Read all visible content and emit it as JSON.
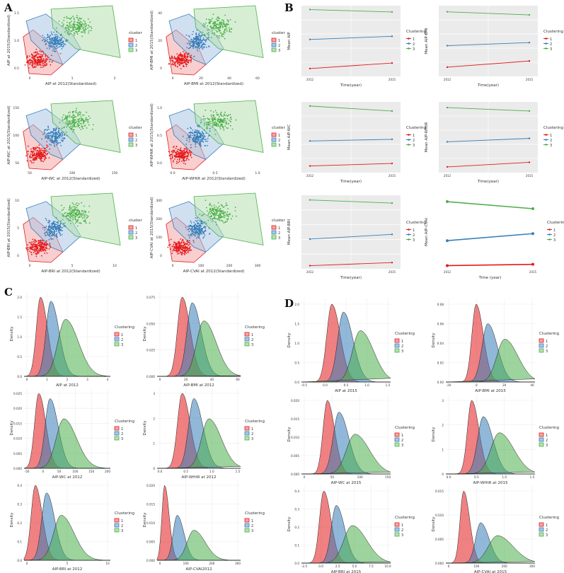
{
  "panels": {
    "A": "A",
    "B": "B",
    "C": "C",
    "D": "D"
  },
  "colors": {
    "c1": "#e41a1c",
    "c2": "#377eb8",
    "c3": "#4daf4a",
    "f1": "#f4a6a6",
    "f2": "#a9c6e6",
    "f3": "#b7e0b2",
    "grid": "#ebebeb"
  },
  "chart_data": [
    {
      "group": "A",
      "type": "scatter",
      "xlabel": "AIP at 2012(Standardized)",
      "ylabel": "AIP at 2015(Standardized)",
      "legend_title": "cluster",
      "legend": [
        "1",
        "2",
        "3"
      ],
      "xticks": [
        "0",
        "1",
        "2"
      ],
      "yticks": [
        "1.5",
        "1.0",
        "0.5"
      ]
    },
    {
      "group": "A",
      "type": "scatter",
      "xlabel": "AIP-BMI at 2012(Standardized)",
      "ylabel": "AIP-BMI at 2015(Standardized)",
      "legend_title": "cluster",
      "legend": [
        "1",
        "2",
        "3"
      ],
      "xticks": [
        "0",
        "20",
        "40",
        "60"
      ],
      "yticks": [
        "40",
        "20",
        "0"
      ]
    },
    {
      "group": "A",
      "type": "scatter",
      "xlabel": "AIP-WC at 2012(Standardized)",
      "ylabel": "AIP-WC at 2015(Standardized)",
      "legend_title": "cluster",
      "legend": [
        "1",
        "2",
        "3"
      ],
      "xticks": [
        "50",
        "100",
        "150"
      ],
      "yticks": [
        "150",
        "100",
        "50"
      ]
    },
    {
      "group": "A",
      "type": "scatter",
      "xlabel": "AIP-WHtR at 2012(Standardized)",
      "ylabel": "AIP-WHtR at 2015(Standardized)",
      "legend_title": "cluster",
      "legend": [
        "1",
        "2",
        "3"
      ],
      "xticks": [
        "0.0",
        "0.5",
        "1.0"
      ],
      "yticks": [
        "1.0",
        "0.5",
        "0.0"
      ]
    },
    {
      "group": "A",
      "type": "scatter",
      "xlabel": "AIP-BRI at 2012(Standardized)",
      "ylabel": "AIP-BRI at 2015(Standardized)",
      "legend_title": "cluster",
      "legend": [
        "1",
        "2",
        "3"
      ],
      "xticks": [
        "0",
        "5",
        "10"
      ],
      "yticks": [
        "10",
        "5",
        "0"
      ]
    },
    {
      "group": "A",
      "type": "scatter",
      "xlabel": "AIP-CVAI at 2012(Standardized)",
      "ylabel": "AIP-CVAI at 2015(Standardized)",
      "legend_title": "cluster",
      "legend": [
        "1",
        "2",
        "3"
      ],
      "xticks": [
        "0",
        "100",
        "200",
        "300"
      ],
      "yticks": [
        "300",
        "200",
        "100",
        "0"
      ]
    },
    {
      "group": "B",
      "type": "line",
      "xlabel": "Time(year)",
      "ylabel": "Mean AIP",
      "legend_title": "Clustering",
      "legend": [
        "1",
        "2",
        "3"
      ],
      "x": [
        "2012",
        "2015"
      ],
      "series": [
        {
          "name": "1",
          "values": [
            0.25,
            0.32
          ]
        },
        {
          "name": "2",
          "values": [
            0.62,
            0.66
          ]
        },
        {
          "name": "3",
          "values": [
            1.0,
            0.97
          ]
        }
      ],
      "ylim": [
        0.15,
        1.05
      ]
    },
    {
      "group": "B",
      "type": "line",
      "xlabel": "Time(year)",
      "ylabel": "Mean AIP-BMI",
      "legend_title": "Clustering",
      "legend": [
        "1",
        "2",
        "3"
      ],
      "x": [
        "2012",
        "2015"
      ],
      "series": [
        {
          "name": "1",
          "values": [
            3,
            5
          ]
        },
        {
          "name": "2",
          "values": [
            10,
            11
          ]
        },
        {
          "name": "3",
          "values": [
            21,
            20
          ]
        }
      ],
      "ylim": [
        0,
        23
      ]
    },
    {
      "group": "B",
      "type": "line",
      "xlabel": "Time(year)",
      "ylabel": "Mean AIP-WC",
      "legend_title": "Clustering",
      "legend": [
        "1",
        "2",
        "3"
      ],
      "x": [
        "2012",
        "2015"
      ],
      "series": [
        {
          "name": "1",
          "values": [
            8,
            11
          ]
        },
        {
          "name": "2",
          "values": [
            38,
            40
          ]
        },
        {
          "name": "3",
          "values": [
            80,
            74
          ]
        }
      ],
      "ylim": [
        0,
        85
      ]
    },
    {
      "group": "B",
      "type": "line",
      "xlabel": "Time(year)",
      "ylabel": "Mean AIP-WHtR",
      "legend_title": "Clustering",
      "legend": [
        "1",
        "2",
        "3"
      ],
      "x": [
        "2012",
        "2015"
      ],
      "series": [
        {
          "name": "1",
          "values": [
            0.05,
            0.09
          ]
        },
        {
          "name": "2",
          "values": [
            0.27,
            0.3
          ]
        },
        {
          "name": "3",
          "values": [
            0.57,
            0.54
          ]
        }
      ],
      "ylim": [
        0,
        0.62
      ]
    },
    {
      "group": "B",
      "type": "line",
      "xlabel": "Time(year)",
      "ylabel": "Mean AIP-BRI",
      "legend_title": "Clustering",
      "legend": [
        "1",
        "2",
        "3"
      ],
      "x": [
        "2012",
        "2015"
      ],
      "series": [
        {
          "name": "1",
          "values": [
            0.5,
            0.7
          ]
        },
        {
          "name": "2",
          "values": [
            2.2,
            2.5
          ]
        },
        {
          "name": "3",
          "values": [
            4.7,
            4.5
          ]
        }
      ],
      "ylim": [
        0.3,
        5
      ]
    },
    {
      "group": "B",
      "type": "line",
      "xlabel": "Time (year)",
      "ylabel": "Mean AIP-CVAI",
      "legend_title": "Clustering",
      "legend": [
        "1",
        "2",
        "3"
      ],
      "x": [
        "2012",
        "2015"
      ],
      "series": [
        {
          "name": "1",
          "values": [
            5,
            7
          ]
        },
        {
          "name": "2",
          "values": [
            44,
            55
          ]
        },
        {
          "name": "3",
          "values": [
            105,
            94
          ]
        }
      ],
      "ylim": [
        0,
        115
      ],
      "plain": true
    },
    {
      "group": "C",
      "type": "area",
      "xlabel": "AIP at 2012",
      "ylabel": "Density",
      "legend_title": "Clustering",
      "legend": [
        "1",
        "2",
        "3"
      ],
      "xticks": [
        "0",
        "1",
        "2",
        "3",
        "4"
      ],
      "yticks": [
        "2.0",
        "1.5",
        "1.0",
        "0.5",
        "0.0"
      ],
      "peaks": [
        0.19,
        0.31,
        0.48
      ],
      "widths": [
        0.06,
        0.07,
        0.11
      ],
      "heights": [
        1.0,
        0.95,
        0.72
      ]
    },
    {
      "group": "C",
      "type": "area",
      "xlabel": "AIP-BMI at 2012",
      "ylabel": "Density",
      "legend_title": "Clustering",
      "legend": [
        "1",
        "2",
        "3"
      ],
      "xticks": [
        "0",
        "20",
        "40",
        "60"
      ],
      "yticks": [
        "0.075",
        "0.050",
        "0.025",
        "0.000"
      ],
      "peaks": [
        0.3,
        0.42,
        0.56
      ],
      "widths": [
        0.07,
        0.08,
        0.11
      ],
      "heights": [
        1.0,
        0.93,
        0.7
      ]
    },
    {
      "group": "C",
      "type": "area",
      "xlabel": "AIP-WC at 2012",
      "ylabel": "Density",
      "legend_title": "Clustering",
      "legend": [
        "1",
        "2",
        "3"
      ],
      "xticks": [
        "-50",
        "0",
        "50",
        "100",
        "150",
        "200"
      ],
      "yticks": [
        "0.025",
        "0.020",
        "0.015",
        "0.010",
        "0.005",
        "0.000"
      ],
      "peaks": [
        0.17,
        0.3,
        0.46
      ],
      "widths": [
        0.06,
        0.07,
        0.11
      ],
      "heights": [
        1.0,
        0.93,
        0.66
      ]
    },
    {
      "group": "C",
      "type": "area",
      "xlabel": "AIP-WHtR at 2012",
      "ylabel": "Density",
      "legend_title": "Clustering",
      "legend": [
        "1",
        "2",
        "3"
      ],
      "xticks": [
        "0.0",
        "0.5",
        "1.0",
        "1.5"
      ],
      "yticks": [
        "3",
        "2",
        "1",
        "0"
      ],
      "peaks": [
        0.3,
        0.44,
        0.62
      ],
      "widths": [
        0.07,
        0.08,
        0.11
      ],
      "heights": [
        1.0,
        0.93,
        0.66
      ]
    },
    {
      "group": "C",
      "type": "area",
      "xlabel": "AIP-BRI at 2012",
      "ylabel": "Density",
      "legend_title": "Clustering",
      "legend": [
        "1",
        "2",
        "3"
      ],
      "xticks": [
        "0",
        "5",
        "10"
      ],
      "yticks": [
        "0.4",
        "0.3",
        "0.2",
        "0.1",
        "0.0"
      ],
      "peaks": [
        0.13,
        0.26,
        0.43
      ],
      "widths": [
        0.06,
        0.07,
        0.11
      ],
      "heights": [
        1.0,
        0.9,
        0.6
      ]
    },
    {
      "group": "C",
      "type": "area",
      "xlabel": "AIP-CVAI2012",
      "ylabel": "Density",
      "legend_title": "Clustering",
      "legend": [
        "1",
        "2",
        "3"
      ],
      "xticks": [
        "0",
        "100",
        "200",
        "300"
      ],
      "yticks": [
        "0.020",
        "0.015",
        "0.010",
        "0.005",
        "0.000"
      ],
      "peaks": [
        0.09,
        0.24,
        0.44
      ],
      "widths": [
        0.04,
        0.06,
        0.1
      ],
      "heights": [
        1.0,
        0.6,
        0.4
      ]
    },
    {
      "group": "D",
      "type": "area",
      "xlabel": "AIP at 2015",
      "ylabel": "Density",
      "legend_title": "Clustering",
      "legend": [
        "1",
        "2",
        "3"
      ],
      "xticks": [
        "-0.5",
        "0.0",
        "0.5",
        "1.0",
        "1.5"
      ],
      "yticks": [
        "2.0",
        "1.5",
        "1.0",
        "0.5",
        "0.0"
      ],
      "peaks": [
        0.34,
        0.47,
        0.66
      ],
      "widths": [
        0.07,
        0.08,
        0.11
      ],
      "heights": [
        1.0,
        0.9,
        0.66
      ]
    },
    {
      "group": "D",
      "type": "area",
      "xlabel": "AIP-BMI at 2015",
      "ylabel": "Density",
      "legend_title": "Clustering",
      "legend": [
        "1",
        "2",
        "3"
      ],
      "xticks": [
        "-20",
        "0",
        "20",
        "40"
      ],
      "yticks": [
        "0.08",
        "0.06",
        "0.04",
        "0.02",
        "0.00"
      ],
      "peaks": [
        0.34,
        0.47,
        0.66
      ],
      "widths": [
        0.06,
        0.08,
        0.11
      ],
      "heights": [
        1.0,
        0.75,
        0.55
      ]
    },
    {
      "group": "D",
      "type": "area",
      "xlabel": "AIP-WC at 2015",
      "ylabel": "Density",
      "legend_title": "Clustering",
      "legend": [
        "1",
        "2",
        "3"
      ],
      "xticks": [
        "0",
        "50",
        "100",
        "150"
      ],
      "yticks": [
        "0.020",
        "0.015",
        "0.010",
        "0.005",
        "0.000"
      ],
      "peaks": [
        0.29,
        0.42,
        0.6
      ],
      "widths": [
        0.06,
        0.08,
        0.12
      ],
      "heights": [
        1.0,
        0.84,
        0.54
      ]
    },
    {
      "group": "D",
      "type": "area",
      "xlabel": "AIP-WHtR at 2015",
      "ylabel": "Density",
      "legend_title": "Clustering",
      "legend": [
        "1",
        "2",
        "3"
      ],
      "xticks": [
        "0.0",
        "0.5",
        "1.0",
        "1.5"
      ],
      "yticks": [
        "3",
        "2",
        "1",
        "0"
      ],
      "peaks": [
        0.29,
        0.42,
        0.6
      ],
      "widths": [
        0.06,
        0.08,
        0.12
      ],
      "heights": [
        1.0,
        0.78,
        0.56
      ]
    },
    {
      "group": "D",
      "type": "area",
      "xlabel": "AIP-BRI at 2015",
      "ylabel": "Density",
      "legend_title": "Clustering",
      "legend": [
        "1",
        "2",
        "3"
      ],
      "xticks": [
        "-2.5",
        "0.0",
        "2.5",
        "5.0",
        "7.5",
        "10.0"
      ],
      "yticks": [
        "0.4",
        "0.3",
        "0.2",
        "0.1",
        "0.0"
      ],
      "peaks": [
        0.25,
        0.39,
        0.57
      ],
      "widths": [
        0.06,
        0.07,
        0.12
      ],
      "heights": [
        1.0,
        0.8,
        0.52
      ]
    },
    {
      "group": "D",
      "type": "area",
      "xlabel": "AIP-CVAI at 2015",
      "ylabel": "Density",
      "legend_title": "Clustering",
      "legend": [
        "1",
        "2",
        "3"
      ],
      "xticks": [
        "0",
        "100",
        "200",
        "300"
      ],
      "yticks": [
        "0.015",
        "0.010",
        "0.005",
        "0.000"
      ],
      "peaks": [
        0.2,
        0.39,
        0.58
      ],
      "widths": [
        0.05,
        0.07,
        0.13
      ],
      "heights": [
        1.0,
        0.56,
        0.38
      ]
    }
  ]
}
